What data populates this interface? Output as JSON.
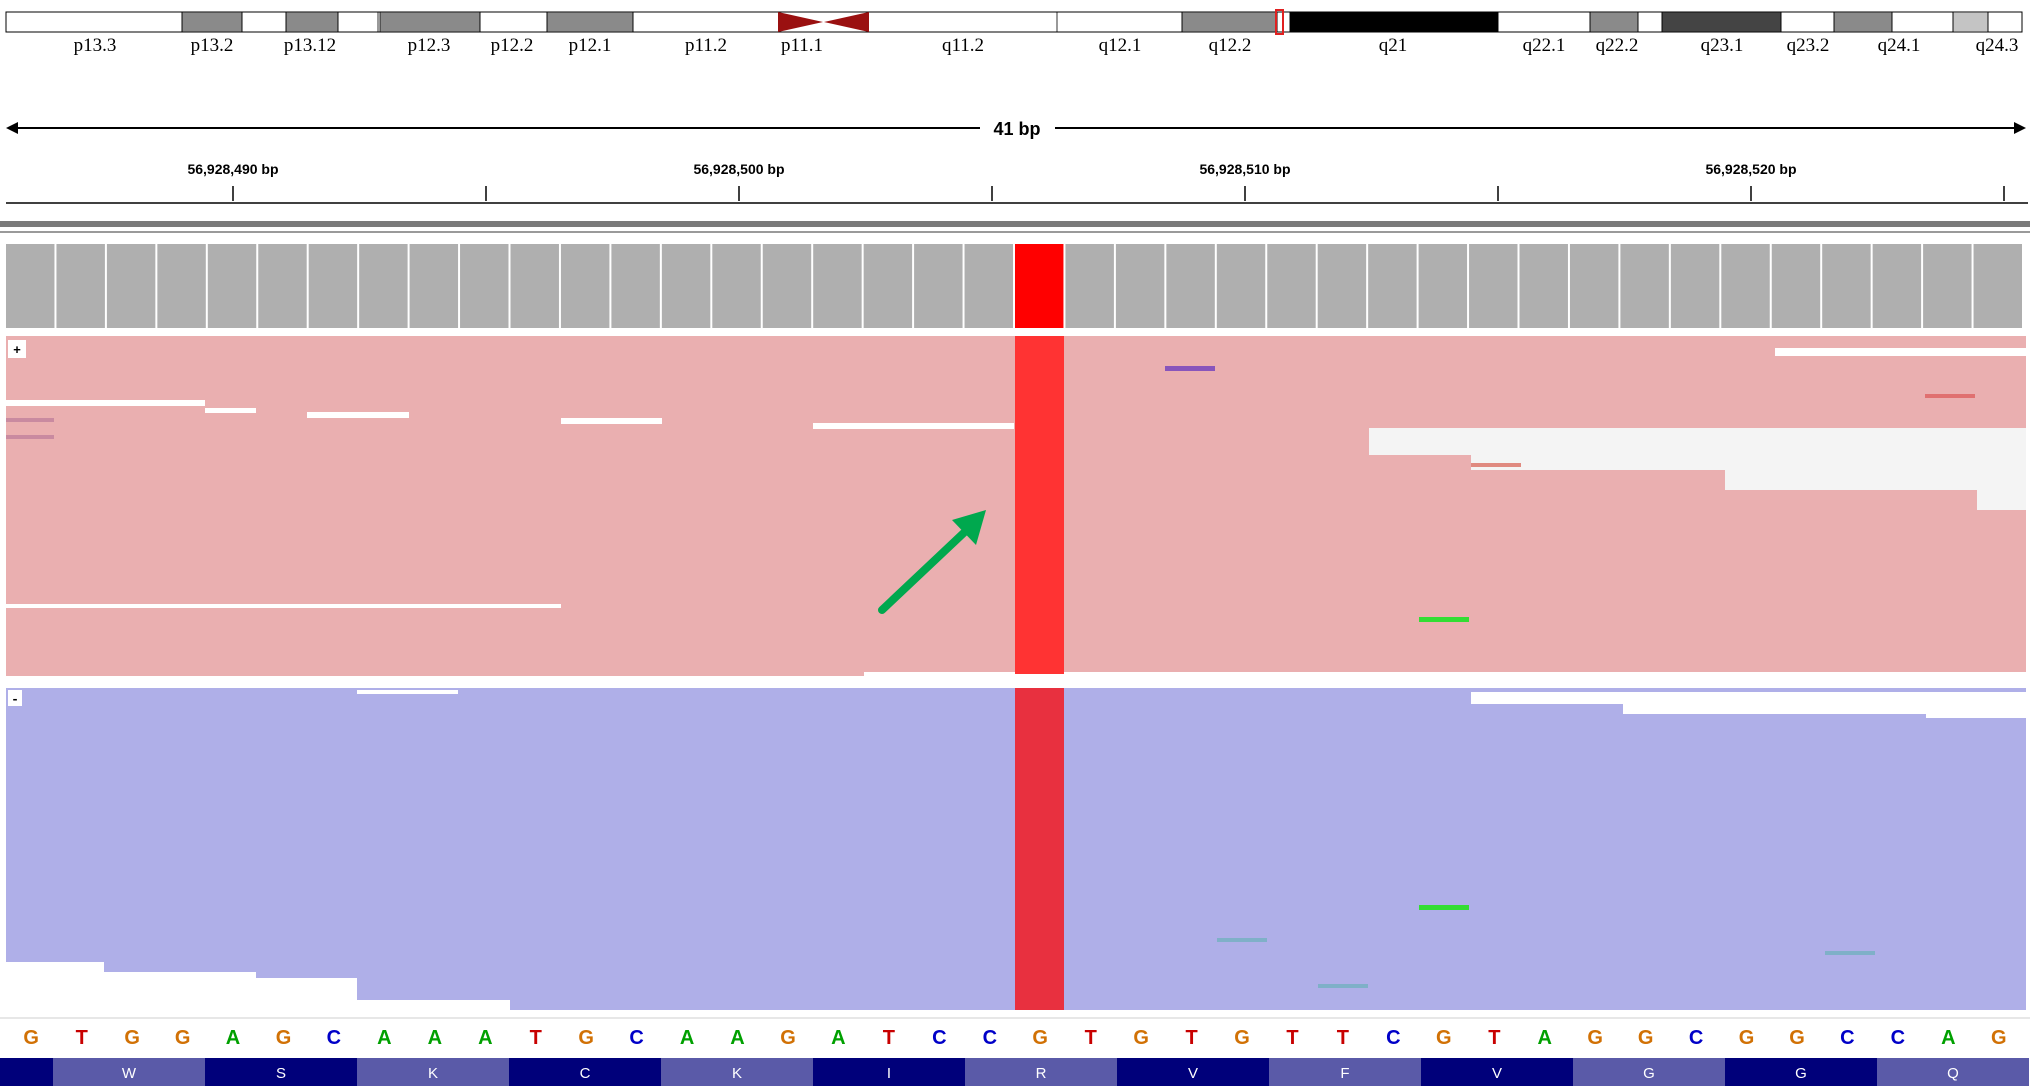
{
  "ideogram": {
    "bands": [
      {
        "name": "p13.3",
        "stain": "white"
      },
      {
        "name": "p13.2",
        "stain": "gray"
      },
      {
        "name": "p13.12",
        "stain": "white"
      },
      {
        "name": "p12.3",
        "stain": "white"
      },
      {
        "name": "p12.2",
        "stain": "white"
      },
      {
        "name": "p12.1",
        "stain": "gray"
      },
      {
        "name": "p11.2",
        "stain": "white"
      },
      {
        "name": "p11.1",
        "stain": "centromere"
      },
      {
        "name": "q11.2",
        "stain": "white"
      },
      {
        "name": "q12.1",
        "stain": "white"
      },
      {
        "name": "q12.2",
        "stain": "gray"
      },
      {
        "name": "q21",
        "stain": "black"
      },
      {
        "name": "q22.1",
        "stain": "white"
      },
      {
        "name": "q22.2",
        "stain": "gray"
      },
      {
        "name": "q23.1",
        "stain": "darkgray"
      },
      {
        "name": "q23.2",
        "stain": "white"
      },
      {
        "name": "q24.1",
        "stain": "gray"
      },
      {
        "name": "q24.3",
        "stain": "lightgray"
      }
    ],
    "current_locus_color": "#e02020"
  },
  "ruler": {
    "span_label": "41 bp",
    "ticks": [
      {
        "label": "56,928,490 bp"
      },
      {
        "label": ""
      },
      {
        "label": "56,928,500 bp"
      },
      {
        "label": ""
      },
      {
        "label": "56,928,510 bp"
      },
      {
        "label": ""
      },
      {
        "label": "56,928,520 bp"
      },
      {
        "label": ""
      }
    ]
  },
  "coverage": {
    "highlight_color": "#ff0000",
    "bar_color": "#afafaf"
  },
  "alignments": {
    "plus_strand_label": "+",
    "minus_strand_label": "-",
    "plus_color": "#eaafb0",
    "minus_color": "#afafe8",
    "variant_color": "#ff3333",
    "annotation_arrow_color": "#00a84e"
  },
  "sequence": {
    "bases": [
      "G",
      "T",
      "G",
      "G",
      "A",
      "G",
      "C",
      "A",
      "A",
      "A",
      "T",
      "G",
      "C",
      "A",
      "A",
      "G",
      "A",
      "T",
      "C",
      "C",
      "G",
      "T",
      "G",
      "T",
      "G",
      "T",
      "T",
      "C",
      "G",
      "T",
      "A",
      "G",
      "G",
      "C",
      "G",
      "G",
      "C",
      "C",
      "A",
      "G"
    ],
    "colors": {
      "A": "#00a000",
      "C": "#0000c8",
      "G": "#d17105",
      "T": "#c80000"
    }
  },
  "translation": {
    "amino_acids": [
      "W",
      "S",
      "K",
      "C",
      "K",
      "I",
      "R",
      "V",
      "F",
      "V",
      "G",
      "G",
      "Q"
    ]
  }
}
